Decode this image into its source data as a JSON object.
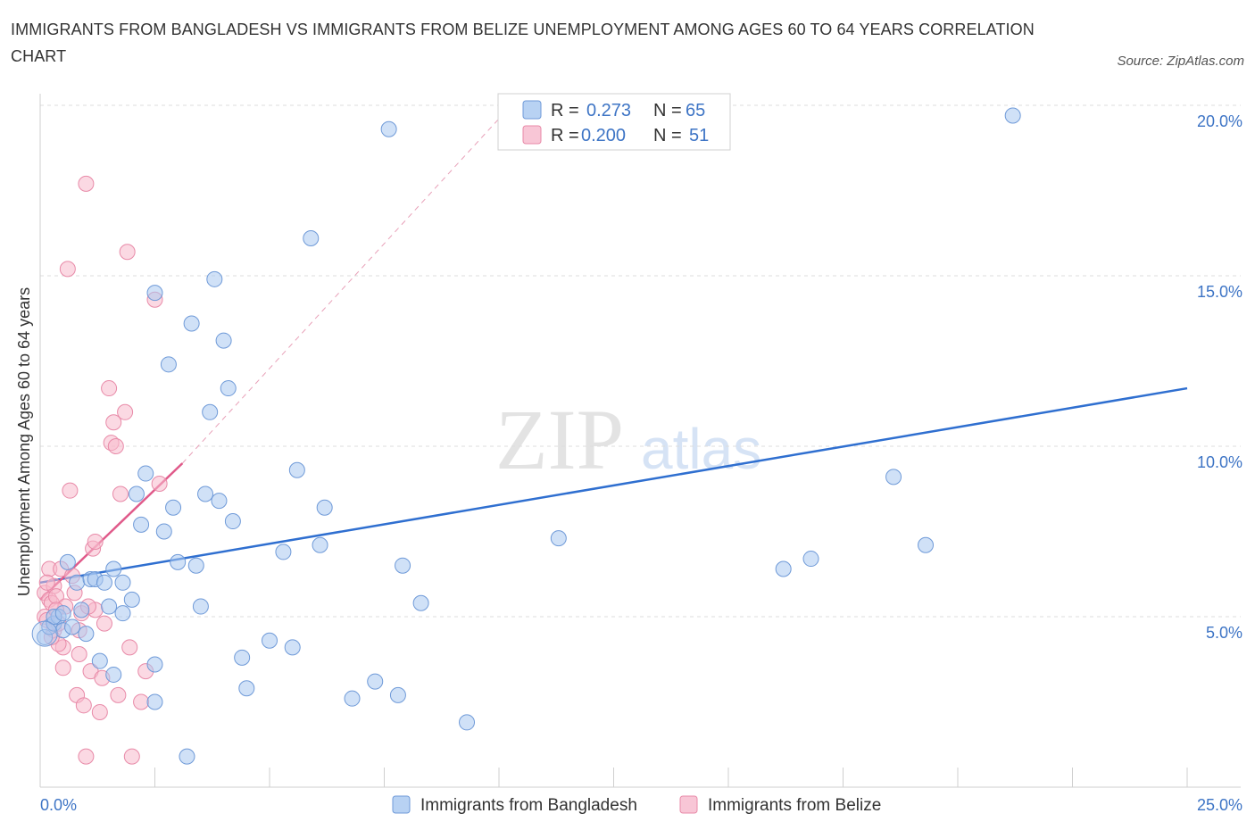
{
  "title": "IMMIGRANTS FROM BANGLADESH VS IMMIGRANTS FROM BELIZE UNEMPLOYMENT AMONG AGES 60 TO 64 YEARS CORRELATION CHART",
  "source": "Source: ZipAtlas.com",
  "watermark": {
    "zip": "ZIP",
    "atlas": "atlas"
  },
  "colors": {
    "bangladesh_fill": "#a9c8f0",
    "bangladesh_stroke": "#6f9ad8",
    "bangladesh_line": "#2f6fd0",
    "belize_fill": "#f7b9cc",
    "belize_stroke": "#e88aa8",
    "belize_line": "#e05a8a",
    "tick": "#3d74c5",
    "grid": "#dcdcdc"
  },
  "legend": {
    "rows": [
      {
        "r_label": "R =",
        "r_value": "0.273",
        "n_label": "N =",
        "n_value": "65"
      },
      {
        "r_label": "R =",
        "r_value": "0.200",
        "n_label": "N =",
        "n_value": "51"
      }
    ]
  },
  "chart_data": {
    "type": "scatter",
    "title": "IMMIGRANTS FROM BANGLADESH VS IMMIGRANTS FROM BELIZE UNEMPLOYMENT AMONG AGES 60 TO 64 YEARS CORRELATION CHART",
    "xlabel": "",
    "ylabel": "Unemployment Among Ages 60 to 64 years",
    "xlim": [
      0,
      25
    ],
    "ylim": [
      0,
      20
    ],
    "x_tick_labels": [
      "0.0%",
      "25.0%"
    ],
    "y_ticks": [
      {
        "value": 5,
        "label": "5.0%"
      },
      {
        "value": 10,
        "label": "10.0%"
      },
      {
        "value": 15,
        "label": "15.0%"
      },
      {
        "value": 20,
        "label": "20.0%"
      }
    ],
    "series": [
      {
        "name": "Immigrants from Bangladesh",
        "R": 0.273,
        "N": 65,
        "trend": {
          "x": [
            0,
            25
          ],
          "y": [
            6.0,
            11.7
          ]
        },
        "points": [
          [
            0.1,
            4.4
          ],
          [
            0.2,
            4.7
          ],
          [
            0.3,
            4.8
          ],
          [
            0.4,
            5.0
          ],
          [
            0.5,
            4.6
          ],
          [
            0.6,
            6.6
          ],
          [
            0.8,
            6.0
          ],
          [
            0.9,
            5.2
          ],
          [
            1.0,
            4.5
          ],
          [
            1.1,
            6.1
          ],
          [
            1.2,
            6.1
          ],
          [
            1.4,
            6.0
          ],
          [
            1.5,
            5.3
          ],
          [
            1.6,
            6.4
          ],
          [
            1.8,
            5.1
          ],
          [
            1.8,
            6.0
          ],
          [
            2.0,
            5.5
          ],
          [
            2.1,
            8.6
          ],
          [
            2.2,
            7.7
          ],
          [
            2.3,
            9.2
          ],
          [
            2.5,
            3.6
          ],
          [
            2.5,
            2.5
          ],
          [
            2.5,
            14.5
          ],
          [
            2.7,
            7.5
          ],
          [
            2.8,
            12.4
          ],
          [
            2.9,
            8.2
          ],
          [
            3.0,
            6.6
          ],
          [
            3.2,
            0.9
          ],
          [
            3.3,
            13.6
          ],
          [
            3.4,
            6.5
          ],
          [
            3.5,
            5.3
          ],
          [
            3.6,
            8.6
          ],
          [
            3.7,
            11.0
          ],
          [
            3.8,
            14.9
          ],
          [
            3.9,
            8.4
          ],
          [
            4.0,
            13.1
          ],
          [
            4.1,
            11.7
          ],
          [
            4.2,
            7.8
          ],
          [
            4.4,
            3.8
          ],
          [
            4.5,
            2.9
          ],
          [
            5.0,
            4.3
          ],
          [
            5.3,
            6.9
          ],
          [
            5.5,
            4.1
          ],
          [
            5.6,
            9.3
          ],
          [
            5.9,
            16.1
          ],
          [
            6.1,
            7.1
          ],
          [
            6.2,
            8.2
          ],
          [
            6.8,
            2.6
          ],
          [
            7.3,
            3.1
          ],
          [
            7.6,
            19.3
          ],
          [
            7.8,
            2.7
          ],
          [
            7.9,
            6.5
          ],
          [
            8.3,
            5.4
          ],
          [
            9.3,
            1.9
          ],
          [
            11.3,
            7.3
          ],
          [
            16.2,
            6.4
          ],
          [
            16.8,
            6.7
          ],
          [
            18.6,
            9.1
          ],
          [
            19.3,
            7.1
          ],
          [
            21.2,
            19.7
          ],
          [
            0.3,
            5.0
          ],
          [
            0.7,
            4.7
          ],
          [
            1.3,
            3.7
          ],
          [
            1.6,
            3.3
          ],
          [
            0.5,
            5.1
          ]
        ]
      },
      {
        "name": "Immigrants from Belize",
        "R": 0.2,
        "N": 51,
        "trend": {
          "x": [
            0,
            3.1
          ],
          "y": [
            5.5,
            9.5
          ]
        },
        "trend_dashed": {
          "x": [
            3.1,
            10.2
          ],
          "y": [
            9.5,
            19.9
          ]
        },
        "points": [
          [
            0.1,
            5.7
          ],
          [
            0.1,
            5.0
          ],
          [
            0.15,
            4.9
          ],
          [
            0.2,
            6.4
          ],
          [
            0.2,
            5.5
          ],
          [
            0.25,
            5.4
          ],
          [
            0.3,
            4.6
          ],
          [
            0.3,
            5.9
          ],
          [
            0.35,
            5.6
          ],
          [
            0.4,
            4.8
          ],
          [
            0.45,
            6.4
          ],
          [
            0.5,
            4.1
          ],
          [
            0.55,
            5.3
          ],
          [
            0.6,
            15.2
          ],
          [
            0.65,
            8.7
          ],
          [
            0.7,
            6.2
          ],
          [
            0.8,
            2.7
          ],
          [
            0.85,
            4.6
          ],
          [
            0.9,
            5.1
          ],
          [
            0.95,
            2.4
          ],
          [
            1.0,
            17.7
          ],
          [
            1.0,
            0.9
          ],
          [
            1.1,
            3.4
          ],
          [
            1.15,
            7.0
          ],
          [
            1.2,
            7.2
          ],
          [
            1.2,
            5.2
          ],
          [
            1.3,
            2.2
          ],
          [
            1.35,
            3.2
          ],
          [
            1.5,
            11.7
          ],
          [
            1.55,
            10.1
          ],
          [
            1.6,
            10.7
          ],
          [
            1.7,
            2.7
          ],
          [
            1.75,
            8.6
          ],
          [
            1.85,
            11.0
          ],
          [
            1.9,
            15.7
          ],
          [
            1.95,
            4.1
          ],
          [
            2.0,
            0.9
          ],
          [
            2.2,
            2.5
          ],
          [
            2.3,
            3.4
          ],
          [
            2.5,
            14.3
          ],
          [
            2.6,
            8.9
          ],
          [
            0.5,
            3.5
          ],
          [
            0.4,
            4.2
          ],
          [
            0.15,
            6.0
          ],
          [
            0.35,
            5.2
          ],
          [
            0.75,
            5.7
          ],
          [
            1.05,
            5.3
          ],
          [
            0.85,
            3.9
          ],
          [
            1.4,
            4.8
          ],
          [
            0.25,
            4.4
          ],
          [
            1.65,
            10.0
          ]
        ]
      }
    ],
    "legend_position": "top-center",
    "grid": true
  },
  "bottom_legend": {
    "bangladesh": "Immigrants from Bangladesh",
    "belize": "Immigrants from Belize"
  }
}
